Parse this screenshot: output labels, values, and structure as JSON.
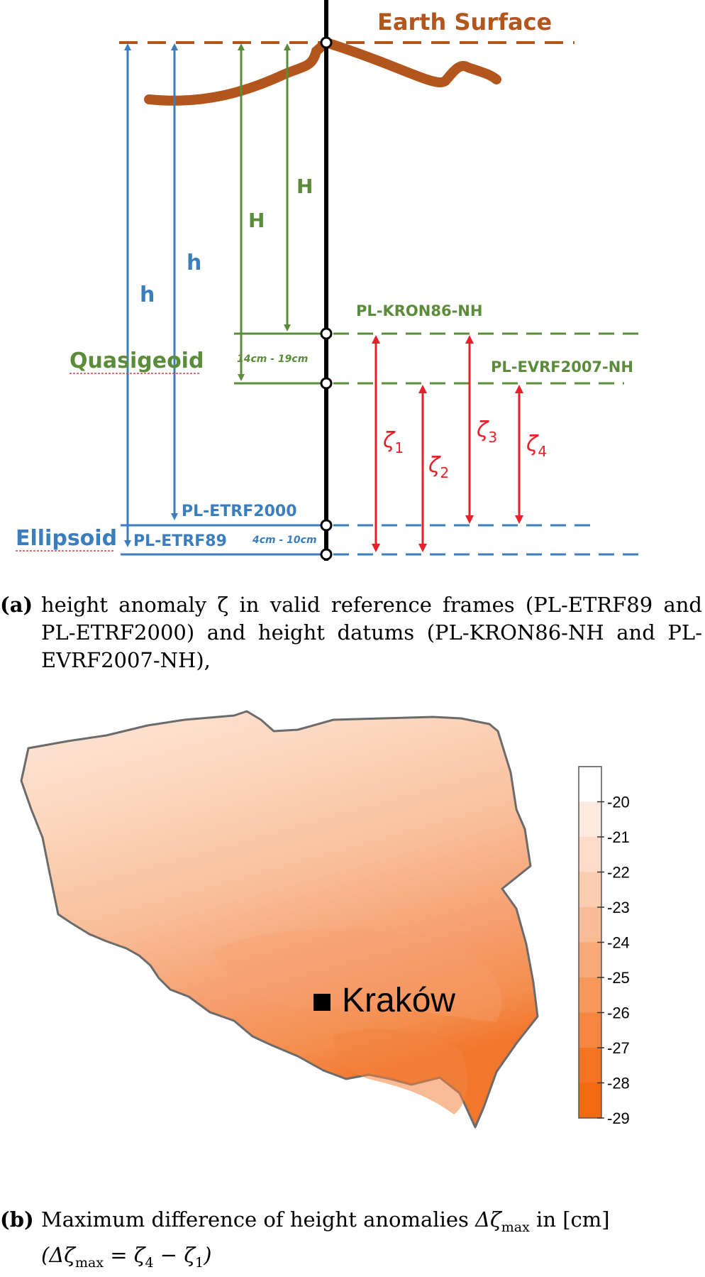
{
  "diagram": {
    "earth_surface": "Earth Surface",
    "quasigeoid": "Quasigeoid",
    "ellipsoid": "Ellipsoid",
    "h_label": "h",
    "H_label": "H",
    "pl_kron86": "PL-KRON86-NH",
    "pl_evrf2007": "PL-EVRF2007-NH",
    "pl_etrf2000": "PL-ETRF2000",
    "pl_etrf89": "PL-ETRF89",
    "range_quasigeoid": "14cm - 19cm",
    "range_ellipsoid": "4cm - 10cm",
    "zeta_symbol": "ζ",
    "zeta_subs": [
      "1",
      "2",
      "3",
      "4"
    ],
    "colors": {
      "earth": "#b2561d",
      "green": "#5b8c3a",
      "blue": "#3a7ebd",
      "red": "#e8202a",
      "axis": "#000000"
    }
  },
  "caption_a": {
    "label": "(a)",
    "text": "height anomaly ζ in valid reference frames (PL-ETRF89 and PL-ETRF2000) and height datums (PL-KRON86-NH and PL-EVRF2007-NH),"
  },
  "map": {
    "city": "Kraków",
    "legend_ticks": [
      "-20",
      "-21",
      "-22",
      "-23",
      "-24",
      "-25",
      "-26",
      "-27",
      "-28",
      "-29"
    ],
    "legend_colors": [
      "#ffffff",
      "#fde9de",
      "#fcdcc8",
      "#fbcdb1",
      "#f9bb95",
      "#f7a978",
      "#f6975c",
      "#f5853f",
      "#f47424",
      "#f26a10"
    ]
  },
  "caption_b": {
    "label": "(b)",
    "p1": "Maximum difference of height anomalies ",
    "dz": "Δζ",
    "max": "max",
    "p2": " in [cm]",
    "eq_open": "(Δζ",
    "eq_mid": " = ζ",
    "sub4": "4",
    "minus": " − ζ",
    "sub1": "1",
    "eq_close": ")"
  }
}
